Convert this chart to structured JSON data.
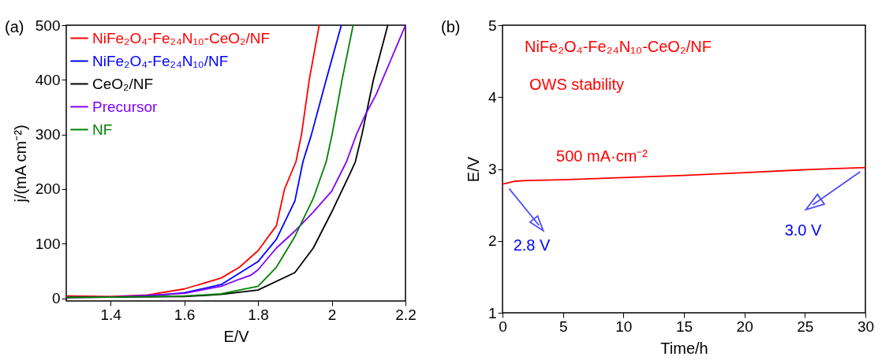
{
  "chart_data": [
    {
      "type": "line",
      "title": "(a)",
      "xlabel": "E/V",
      "ylabel": "j/(mA cm⁻²)",
      "xlim": [
        1.28,
        2.2
      ],
      "xticks": [
        1.4,
        1.6,
        1.8,
        2.0,
        2.2
      ],
      "ylim": [
        -5,
        500
      ],
      "yticks": [
        0,
        100,
        200,
        300,
        400,
        500
      ],
      "grid": false,
      "legend": "top left",
      "series": [
        {
          "name": "NiFe₂O₄-Fe₂₄N₁₀-CeO₂/NF",
          "color": "#ff0000",
          "x": [
            1.28,
            1.4,
            1.5,
            1.6,
            1.7,
            1.75,
            1.8,
            1.85,
            1.872,
            1.903,
            1.918,
            1.939,
            1.966
          ],
          "values": [
            4,
            3,
            6,
            17,
            37,
            57,
            87,
            133,
            200,
            250,
            300,
            400,
            500
          ]
        },
        {
          "name": "NiFe₂O₄-Fe₂₄N₁₀/NF",
          "color": "#0000ff",
          "x": [
            1.28,
            1.4,
            1.5,
            1.6,
            1.7,
            1.8,
            1.85,
            1.9,
            1.922,
            1.945,
            1.985,
            2.026
          ],
          "values": [
            2,
            2,
            4,
            10,
            25,
            67,
            108,
            178,
            250,
            300,
            400,
            500
          ]
        },
        {
          "name": "CeO₂/NF",
          "color": "#000000",
          "x": [
            1.28,
            1.4,
            1.6,
            1.7,
            1.8,
            1.9,
            1.95,
            2.0,
            2.05,
            2.064,
            2.082,
            2.113,
            2.152
          ],
          "values": [
            1,
            2,
            3,
            7,
            15,
            47,
            92,
            158,
            229,
            250,
            300,
            400,
            500
          ]
        },
        {
          "name": "Precursor",
          "color": "#8000ff",
          "x": [
            1.28,
            1.4,
            1.6,
            1.7,
            1.75,
            1.78,
            1.8,
            1.85,
            1.9,
            1.95,
            2.0,
            2.04,
            2.067,
            2.092,
            2.121,
            2.2
          ],
          "values": [
            2,
            2,
            9,
            22,
            35,
            42,
            52,
            92,
            123,
            158,
            196,
            250,
            300,
            337,
            374,
            500
          ]
        },
        {
          "name": "NF",
          "color": "#008000",
          "x": [
            1.28,
            1.4,
            1.6,
            1.7,
            1.8,
            1.85,
            1.9,
            1.95,
            1.985,
            2.001,
            2.028,
            2.058
          ],
          "values": [
            2,
            2,
            4,
            8,
            22,
            57,
            113,
            183,
            250,
            300,
            400,
            500
          ]
        }
      ]
    },
    {
      "type": "line",
      "title": "(b)",
      "xlabel": "Time/h",
      "ylabel": "E/V",
      "xlim": [
        0,
        30
      ],
      "xticks": [
        0,
        5,
        10,
        15,
        20,
        25,
        30
      ],
      "ylim": [
        1,
        5
      ],
      "yticks": [
        1,
        2,
        3,
        4,
        5
      ],
      "grid": false,
      "series": [
        {
          "color": "#ff0000",
          "x": [
            0,
            0.5,
            1,
            2,
            5,
            10,
            15,
            20,
            25,
            30
          ],
          "values": [
            2.79,
            2.81,
            2.83,
            2.84,
            2.85,
            2.88,
            2.91,
            2.95,
            2.99,
            3.02
          ]
        }
      ],
      "annotations": [
        "NiFe₂O₄-Fe₂₄N₁₀-CeO₂/NF",
        "OWS stability",
        "500 mA·cm⁻²",
        "2.8 V",
        "3.0 V"
      ]
    }
  ]
}
